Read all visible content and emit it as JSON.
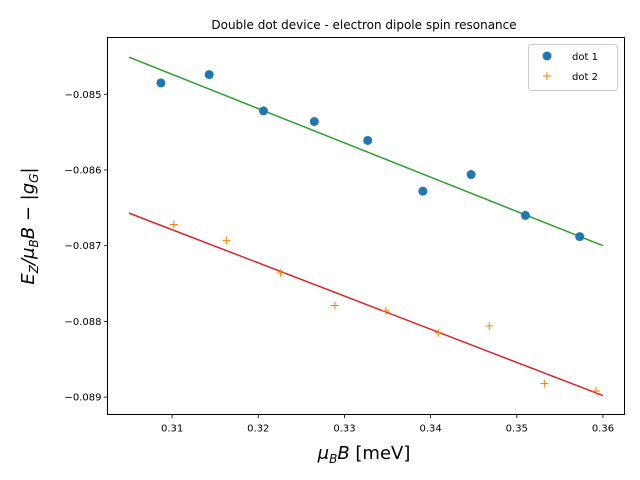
{
  "chart_data": {
    "type": "scatter",
    "title": "Double dot device - electron dipole spin resonance",
    "xlabel": "μ_B B [meV]",
    "ylabel": "E_Z/μ_B B − |g_G|",
    "xlim": [
      0.3025,
      0.3625
    ],
    "ylim": [
      -0.08923,
      -0.08425
    ],
    "xticks": [
      0.31,
      0.32,
      0.33,
      0.34,
      0.35,
      0.36
    ],
    "xtick_labels": [
      "0.31",
      "0.32",
      "0.33",
      "0.34",
      "0.35",
      "0.36"
    ],
    "yticks": [
      -0.085,
      -0.086,
      -0.087,
      -0.088,
      -0.089
    ],
    "ytick_labels": [
      "−0.085",
      "−0.086",
      "−0.087",
      "−0.088",
      "−0.089"
    ],
    "legend_position": "top-right",
    "series": [
      {
        "name": "dot 1",
        "marker": "circle",
        "color": "#1f77b4",
        "x": [
          0.3087,
          0.3143,
          0.3206,
          0.3265,
          0.3327,
          0.3391,
          0.3447,
          0.351,
          0.3573
        ],
        "y": [
          -0.08485,
          -0.08474,
          -0.08522,
          -0.08536,
          -0.08561,
          -0.08628,
          -0.08606,
          -0.0866,
          -0.08688
        ]
      },
      {
        "name": "dot 2",
        "marker": "plus",
        "color": "#ff7f0e",
        "x": [
          0.3102,
          0.3163,
          0.3226,
          0.3289,
          0.3348,
          0.3409,
          0.3468,
          0.3532,
          0.3592
        ],
        "y": [
          -0.08672,
          -0.08693,
          -0.08736,
          -0.08779,
          -0.08786,
          -0.08815,
          -0.08806,
          -0.08882,
          -0.08892
        ]
      }
    ],
    "fit_lines": [
      {
        "name": "dot 1 fit",
        "color": "#2ca02c",
        "x": [
          0.305,
          0.36
        ],
        "y": [
          -0.08451,
          -0.087
        ]
      },
      {
        "name": "dot 2 fit",
        "color": "#d62728",
        "x": [
          0.305,
          0.36
        ],
        "y": [
          -0.08657,
          -0.08898
        ]
      }
    ]
  }
}
